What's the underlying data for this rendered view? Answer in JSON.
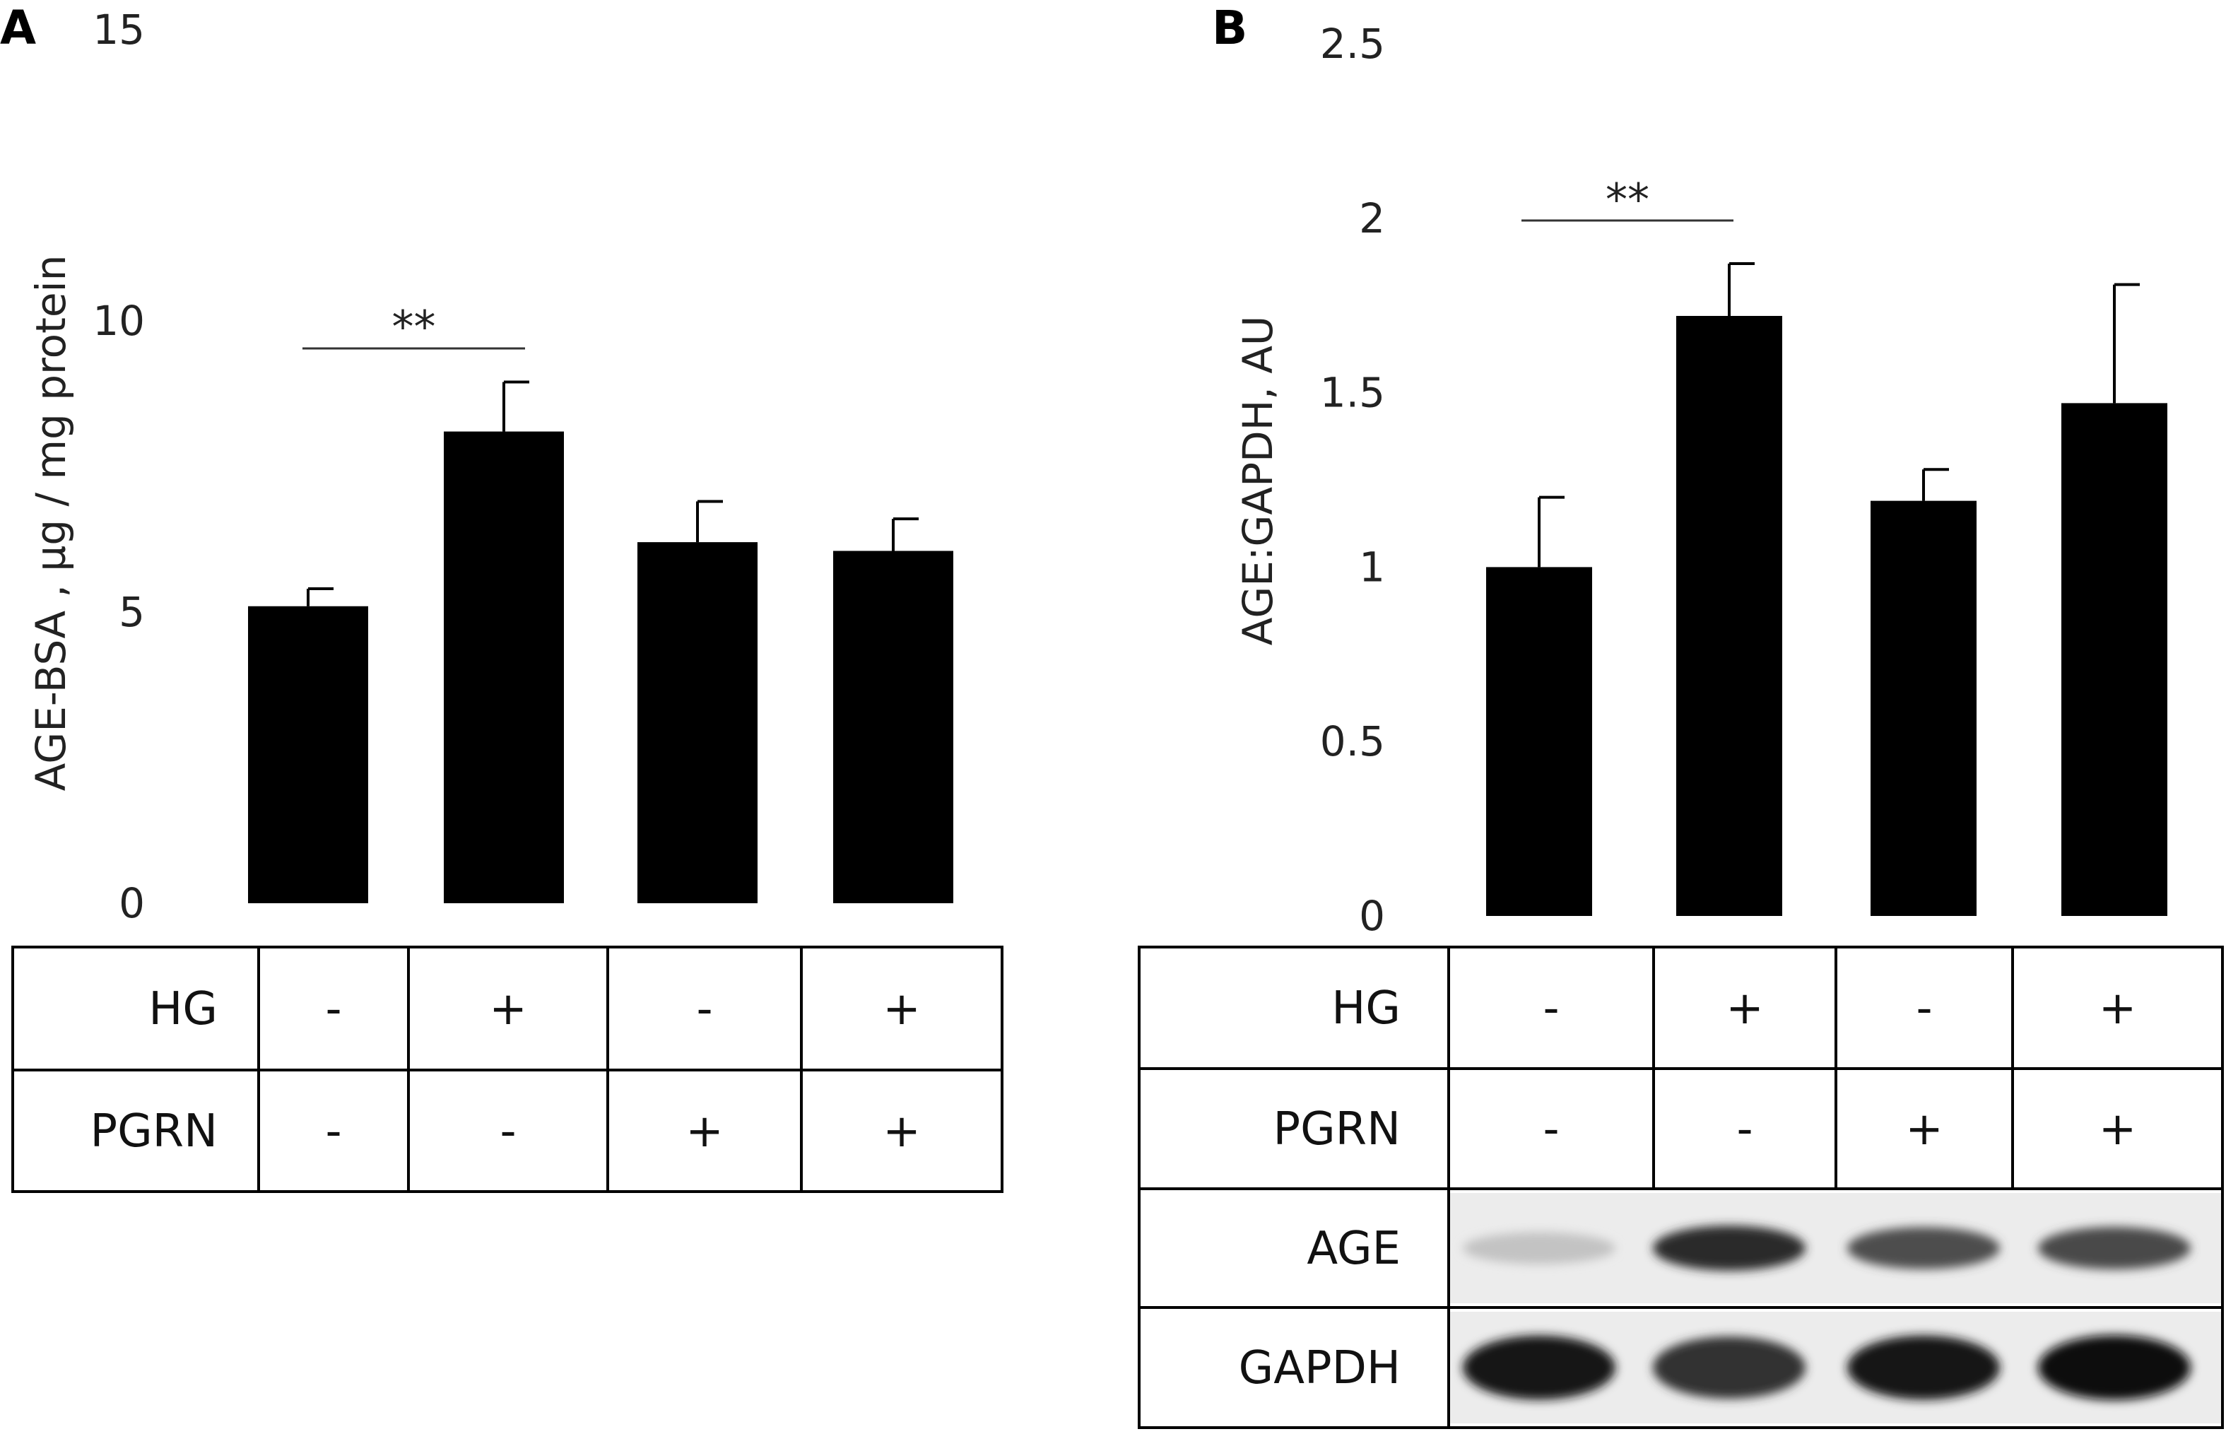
{
  "panels": [
    {
      "letter": "A",
      "chart_data": {
        "type": "bar",
        "ylabel": "AGE-BSA , µg / mg protein",
        "ylim": [
          0,
          15
        ],
        "yticks": [
          0,
          5,
          10,
          15
        ],
        "values": [
          5.1,
          8.1,
          6.2,
          6.05
        ],
        "errors": [
          0.3,
          0.85,
          0.7,
          0.55
        ],
        "significance": {
          "label": "**",
          "between": [
            0,
            1
          ]
        },
        "grid": false,
        "legend": "none"
      },
      "table": {
        "rows": [
          {
            "label": "HG",
            "cells": [
              "-",
              "+",
              "-",
              "+"
            ]
          },
          {
            "label": "PGRN",
            "cells": [
              "-",
              "-",
              "+",
              "+"
            ]
          }
        ]
      }
    },
    {
      "letter": "B",
      "chart_data": {
        "type": "bar",
        "ylabel": "AGE:GAPDH, AU",
        "ylim": [
          0,
          2.5
        ],
        "yticks": [
          "0",
          "0.5",
          "1",
          "1.5",
          "2",
          "2.5"
        ],
        "values": [
          1.0,
          1.72,
          1.19,
          1.47
        ],
        "errors": [
          0.2,
          0.15,
          0.09,
          0.34
        ],
        "significance": {
          "label": "**",
          "between": [
            0,
            1
          ]
        },
        "grid": false,
        "legend": "none"
      },
      "table": {
        "rows": [
          {
            "label": "HG",
            "cells": [
              "-",
              "+",
              "-",
              "+"
            ]
          },
          {
            "label": "PGRN",
            "cells": [
              "-",
              "-",
              "+",
              "+"
            ]
          }
        ],
        "blot_rows": [
          {
            "label": "AGE",
            "band_intensity": [
              0.18,
              0.85,
              0.7,
              0.72
            ]
          },
          {
            "label": "GAPDH",
            "band_intensity": [
              0.95,
              0.82,
              0.95,
              1.0
            ]
          }
        ]
      }
    }
  ]
}
